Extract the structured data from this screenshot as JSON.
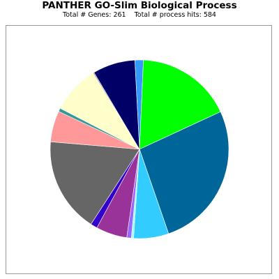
{
  "chart_data": {
    "type": "pie",
    "title": "PANTHER GO-Slim Biological Process",
    "subtitle_genes": "Total # Genes: 261",
    "subtitle_hits": "Total # process hits: 584",
    "slices": [
      {
        "value": 1.5,
        "color": "#3399ff"
      },
      {
        "value": 17.0,
        "color": "#00ff00"
      },
      {
        "value": 26.0,
        "color": "#006699"
      },
      {
        "value": 6.2,
        "color": "#33ccff"
      },
      {
        "value": 0.4,
        "color": "#99ffff"
      },
      {
        "value": 0.8,
        "color": "#9966ff"
      },
      {
        "value": 5.5,
        "color": "#993399"
      },
      {
        "value": 1.2,
        "color": "#3300cc"
      },
      {
        "value": 16.8,
        "color": "#666666"
      },
      {
        "value": 5.5,
        "color": "#ff9999"
      },
      {
        "value": 0.6,
        "color": "#339999"
      },
      {
        "value": 8.5,
        "color": "#ffffcc"
      },
      {
        "value": 0.2,
        "color": "#999999"
      },
      {
        "value": 7.5,
        "color": "#000066"
      }
    ]
  }
}
